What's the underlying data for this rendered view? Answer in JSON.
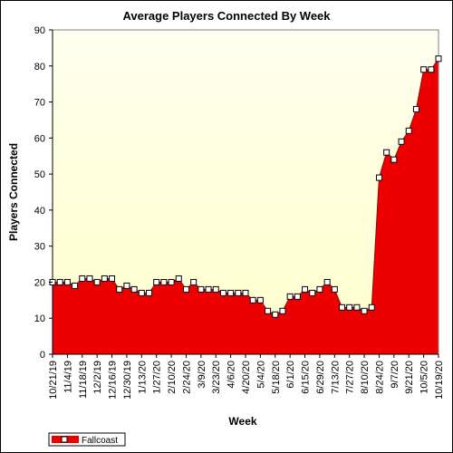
{
  "chart_data": {
    "type": "area",
    "title": "Average Players Connected By Week",
    "xlabel": "Week",
    "ylabel": "Players Connected",
    "ylim": [
      0,
      90
    ],
    "yticks": [
      0,
      10,
      20,
      30,
      40,
      50,
      60,
      70,
      80,
      90
    ],
    "grid": false,
    "legend_position": "bottom-left",
    "colors": {
      "fill": "#ee0000",
      "line": "#990000",
      "marker_fill": "#ffffff",
      "marker_stroke": "#000000",
      "plot_bg_top": "#ffffee",
      "plot_bg_bottom": "#ffffcc"
    },
    "x_tick_labels": [
      "10/21/19",
      "11/4/19",
      "11/18/19",
      "12/2/19",
      "12/16/19",
      "12/30/19",
      "1/13/20",
      "1/27/20",
      "2/10/20",
      "2/24/20",
      "3/9/20",
      "3/23/20",
      "4/6/20",
      "4/20/20",
      "5/4/20",
      "5/18/20",
      "6/1/20",
      "6/15/20",
      "6/29/20",
      "7/13/20",
      "7/27/20",
      "8/10/20",
      "8/24/20",
      "9/7/20",
      "9/21/20",
      "10/5/20",
      "10/19/20"
    ],
    "x": [
      "10/21/19",
      "10/28/19",
      "11/4/19",
      "11/11/19",
      "11/18/19",
      "11/25/19",
      "12/2/19",
      "12/9/19",
      "12/16/19",
      "12/23/19",
      "12/30/19",
      "1/6/20",
      "1/13/20",
      "1/20/20",
      "1/27/20",
      "2/3/20",
      "2/10/20",
      "2/17/20",
      "2/24/20",
      "3/2/20",
      "3/9/20",
      "3/16/20",
      "3/23/20",
      "3/30/20",
      "4/6/20",
      "4/13/20",
      "4/20/20",
      "4/27/20",
      "5/4/20",
      "5/11/20",
      "5/18/20",
      "5/25/20",
      "6/1/20",
      "6/8/20",
      "6/15/20",
      "6/22/20",
      "6/29/20",
      "7/6/20",
      "7/13/20",
      "7/20/20",
      "7/27/20",
      "8/3/20",
      "8/10/20",
      "8/17/20",
      "8/24/20",
      "8/31/20",
      "9/7/20",
      "9/14/20",
      "9/21/20",
      "9/28/20",
      "10/5/20",
      "10/12/20",
      "10/19/20"
    ],
    "series": [
      {
        "name": "Fallcoast",
        "values": [
          20,
          20,
          20,
          19,
          21,
          21,
          20,
          21,
          21,
          18,
          19,
          18,
          17,
          17,
          20,
          20,
          20,
          21,
          18,
          20,
          18,
          18,
          18,
          17,
          17,
          17,
          17,
          15,
          15,
          12,
          11,
          12,
          16,
          16,
          18,
          17,
          18,
          20,
          18,
          13,
          13,
          13,
          12,
          13,
          49,
          56,
          54,
          59,
          62,
          68,
          79,
          79,
          82
        ]
      }
    ]
  }
}
